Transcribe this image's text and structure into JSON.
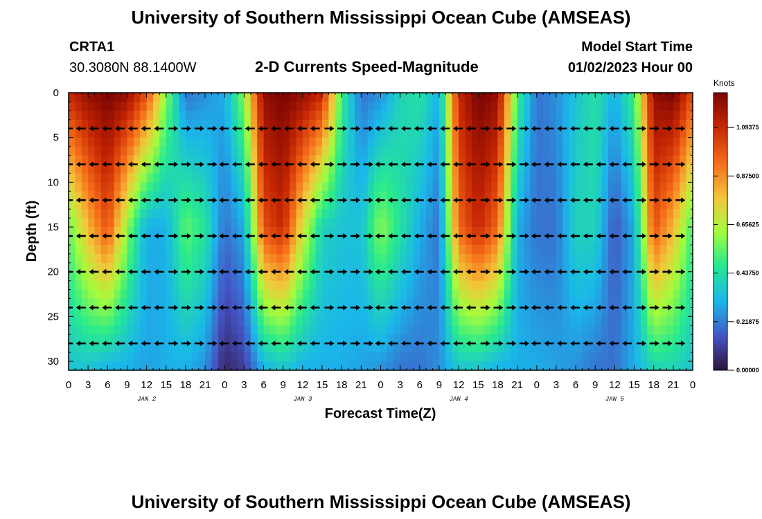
{
  "header": {
    "title": "University of Southern Mississippi Ocean Cube (AMSEAS)",
    "station": "CRTA1",
    "coords": "30.3080N  88.1400W",
    "subtitle": "2-D Currents Speed-Magnitude",
    "model_label": "Model Start Time",
    "model_time": "01/02/2023 Hour 00"
  },
  "footer": {
    "title": "University of Southern Mississippi Ocean Cube (AMSEAS)"
  },
  "colors": {
    "arrow": "#000000",
    "axis": "#000000"
  },
  "chart_data": {
    "type": "heatmap",
    "title": "2-D Currents Speed-Magnitude",
    "xlabel": "Forecast Time(Z)",
    "ylabel": "Depth (ft)",
    "x_unit": "hours since 01/02/2023 00Z",
    "xlim": [
      0,
      96
    ],
    "ylim": [
      0,
      31
    ],
    "x_ticks": [
      0,
      3,
      6,
      9,
      12,
      15,
      18,
      21,
      24,
      27,
      30,
      33,
      36,
      39,
      42,
      45,
      48,
      51,
      54,
      57,
      60,
      63,
      66,
      69,
      72,
      75,
      78,
      81,
      84,
      87,
      90,
      93,
      96
    ],
    "x_tick_labels": [
      "0",
      "3",
      "6",
      "9",
      "12",
      "15",
      "18",
      "21",
      "0",
      "3",
      "6",
      "9",
      "12",
      "15",
      "18",
      "21",
      "0",
      "3",
      "6",
      "9",
      "12",
      "15",
      "18",
      "21",
      "0",
      "3",
      "6",
      "9",
      "12",
      "15",
      "18",
      "21",
      "0"
    ],
    "y_ticks": [
      0,
      5,
      10,
      15,
      20,
      25,
      30
    ],
    "y_tick_labels": [
      "0",
      "5",
      "10",
      "15",
      "20",
      "25",
      "30"
    ],
    "day_labels": [
      {
        "text": "JAN 2",
        "hour": 12
      },
      {
        "text": "JAN 3",
        "hour": 36
      },
      {
        "text": "JAN 4",
        "hour": 60
      },
      {
        "text": "JAN 5",
        "hour": 84
      }
    ],
    "colorbar": {
      "unit": "Knots",
      "min": 0,
      "max": 1.25,
      "tick_values": [
        0.0,
        0.21875,
        0.4375,
        0.65625,
        0.875,
        1.09375
      ],
      "tick_labels": [
        "0.00000",
        "0.21875",
        "0.43750",
        "0.65625",
        "0.87500",
        "1.09375"
      ]
    },
    "speed_by_hour": [
      {
        "hour": 0,
        "surf": 1.1,
        "mid": 0.55,
        "bot": 0.35
      },
      {
        "hour": 3,
        "surf": 1.2,
        "mid": 0.8,
        "bot": 0.35
      },
      {
        "hour": 6,
        "surf": 1.25,
        "mid": 1.0,
        "bot": 0.3
      },
      {
        "hour": 9,
        "surf": 1.2,
        "mid": 0.6,
        "bot": 0.3
      },
      {
        "hour": 12,
        "surf": 1.0,
        "mid": 0.3,
        "bot": 0.28
      },
      {
        "hour": 15,
        "surf": 0.6,
        "mid": 0.3,
        "bot": 0.3
      },
      {
        "hour": 18,
        "surf": 0.2,
        "mid": 0.55,
        "bot": 0.3
      },
      {
        "hour": 21,
        "surf": 0.25,
        "mid": 0.45,
        "bot": 0.25
      },
      {
        "hour": 24,
        "surf": 0.3,
        "mid": 0.2,
        "bot": 0.05
      },
      {
        "hour": 27,
        "surf": 0.6,
        "mid": 0.3,
        "bot": 0.1
      },
      {
        "hour": 30,
        "surf": 1.2,
        "mid": 1.0,
        "bot": 0.3
      },
      {
        "hour": 33,
        "surf": 1.25,
        "mid": 1.1,
        "bot": 0.35
      },
      {
        "hour": 36,
        "surf": 1.2,
        "mid": 0.7,
        "bot": 0.3
      },
      {
        "hour": 39,
        "surf": 1.1,
        "mid": 0.4,
        "bot": 0.3
      },
      {
        "hour": 42,
        "surf": 0.5,
        "mid": 0.35,
        "bot": 0.3
      },
      {
        "hour": 45,
        "surf": 0.2,
        "mid": 0.35,
        "bot": 0.28
      },
      {
        "hour": 48,
        "surf": 0.25,
        "mid": 0.6,
        "bot": 0.25
      },
      {
        "hour": 51,
        "surf": 0.4,
        "mid": 0.45,
        "bot": 0.2
      },
      {
        "hour": 54,
        "surf": 0.45,
        "mid": 0.3,
        "bot": 0.2
      },
      {
        "hour": 57,
        "surf": 0.3,
        "mid": 0.2,
        "bot": 0.25
      },
      {
        "hour": 60,
        "surf": 1.1,
        "mid": 0.95,
        "bot": 0.35
      },
      {
        "hour": 63,
        "surf": 1.25,
        "mid": 1.1,
        "bot": 0.35
      },
      {
        "hour": 66,
        "surf": 1.2,
        "mid": 0.95,
        "bot": 0.3
      },
      {
        "hour": 69,
        "surf": 0.5,
        "mid": 0.3,
        "bot": 0.3
      },
      {
        "hour": 72,
        "surf": 0.2,
        "mid": 0.2,
        "bot": 0.3
      },
      {
        "hour": 75,
        "surf": 0.25,
        "mid": 0.2,
        "bot": 0.28
      },
      {
        "hour": 78,
        "surf": 0.35,
        "mid": 0.4,
        "bot": 0.25
      },
      {
        "hour": 81,
        "surf": 0.45,
        "mid": 0.4,
        "bot": 0.2
      },
      {
        "hour": 84,
        "surf": 0.3,
        "mid": 0.15,
        "bot": 0.2
      },
      {
        "hour": 87,
        "surf": 0.5,
        "mid": 0.3,
        "bot": 0.3
      },
      {
        "hour": 90,
        "surf": 1.2,
        "mid": 1.0,
        "bot": 0.4
      },
      {
        "hour": 93,
        "surf": 1.25,
        "mid": 0.8,
        "bot": 0.4
      },
      {
        "hour": 96,
        "surf": 1.0,
        "mid": 0.5,
        "bot": 0.35
      }
    ],
    "vector_depths_ft": [
      4,
      8,
      12,
      16,
      20,
      24,
      28
    ],
    "vector_hours": [
      0,
      2,
      4,
      6,
      8,
      10,
      12,
      14,
      16,
      18,
      20,
      22,
      24,
      26,
      28,
      30,
      32,
      34,
      36,
      38,
      40,
      42,
      44,
      46,
      48,
      50,
      52,
      54,
      56,
      58,
      60,
      62,
      64,
      66,
      68,
      70,
      72,
      74,
      76,
      78,
      80,
      82,
      84,
      86,
      88,
      90,
      92,
      94
    ],
    "vector_direction_by_hour": [
      -1,
      -1,
      -1,
      -1,
      -1,
      -1,
      -1,
      -1,
      1,
      1,
      1,
      1,
      -1,
      -1,
      -1,
      -1,
      -1,
      -1,
      -1,
      -1,
      1,
      1,
      1,
      1,
      -1,
      -1,
      -1,
      -1,
      -1,
      -1,
      -1,
      -1,
      1,
      1,
      1,
      1,
      -1,
      -1,
      -1,
      -1,
      -1,
      -1,
      -1,
      -1,
      1,
      1,
      1,
      1
    ]
  }
}
